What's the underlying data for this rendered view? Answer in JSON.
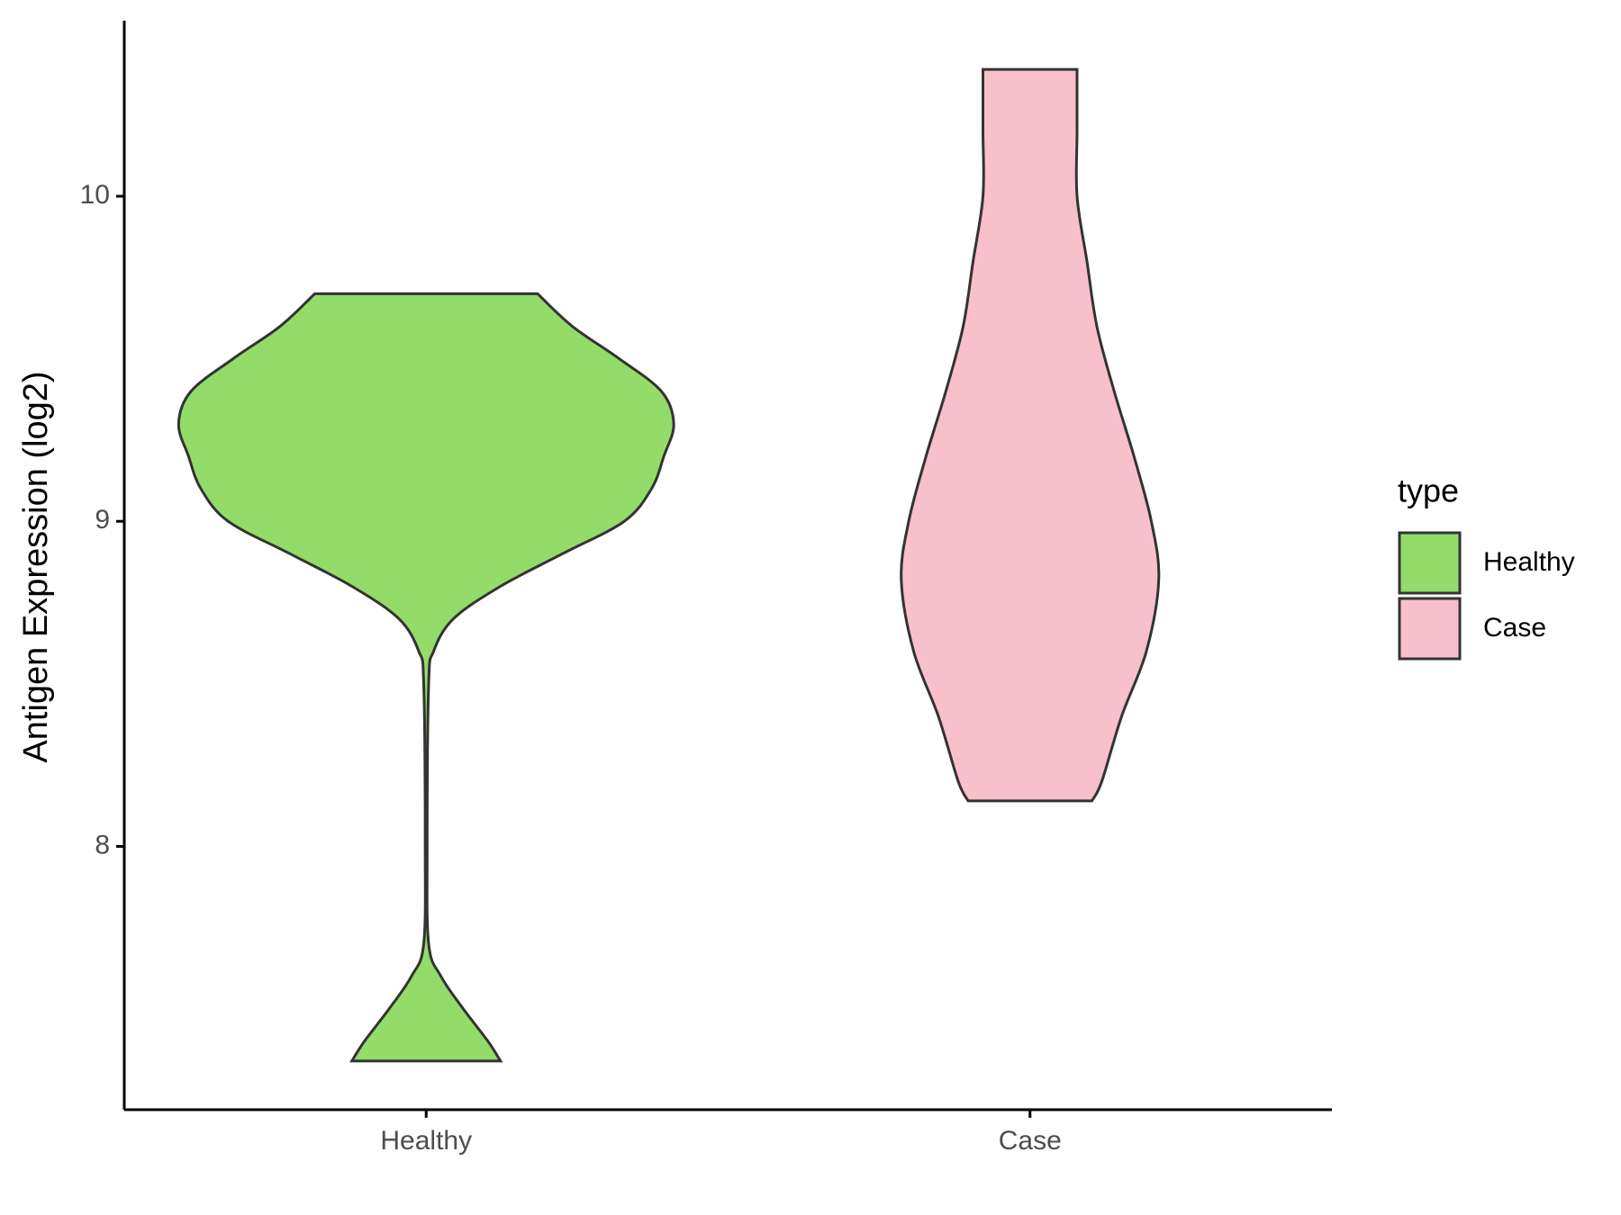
{
  "chart_data": {
    "type": "violin",
    "ylabel": "Antigen Expression (log2)",
    "categories": [
      "Healthy",
      "Case"
    ],
    "ylim": [
      7.19,
      10.54
    ],
    "yticks": [
      8,
      9,
      10
    ],
    "legend_title": "type",
    "legend_position": "right",
    "series": [
      {
        "name": "Healthy",
        "color": "#93dc6a",
        "y": [
          9.7,
          9.6,
          9.5,
          9.4,
          9.3,
          9.2,
          9.1,
          9.0,
          8.9,
          8.8,
          8.7,
          8.6,
          8.5,
          8.0,
          7.7,
          7.6,
          7.5,
          7.4,
          7.34
        ],
        "density": [
          0.45,
          0.59,
          0.78,
          0.95,
          1.0,
          0.96,
          0.91,
          0.8,
          0.55,
          0.3,
          0.11,
          0.03,
          0.01,
          0.004,
          0.01,
          0.06,
          0.15,
          0.25,
          0.3
        ]
      },
      {
        "name": "Case",
        "color": "#f7c0cb",
        "y": [
          10.39,
          10.2,
          10.0,
          9.8,
          9.6,
          9.4,
          9.2,
          9.0,
          8.82,
          8.6,
          8.4,
          8.2,
          8.14
        ],
        "density": [
          0.19,
          0.19,
          0.19,
          0.23,
          0.27,
          0.34,
          0.42,
          0.49,
          0.52,
          0.47,
          0.37,
          0.29,
          0.25
        ]
      }
    ]
  }
}
